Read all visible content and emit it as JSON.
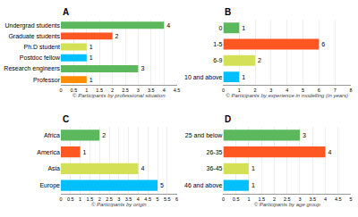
{
  "chart_data": [
    {
      "type": "bar",
      "orientation": "horizontal",
      "title": "A",
      "xlabel": "© Participants by professional situation",
      "categories": [
        "Professor",
        "Research engineers",
        "Postdoc fellow",
        "Ph.D student",
        "Graduate students",
        "Undergrad students"
      ],
      "values": [
        1,
        3,
        1,
        1,
        2,
        4
      ],
      "colors": [
        "#FF8C00",
        "#5CB85C",
        "#00BFFF",
        "#D4E157",
        "#FF5722",
        "#5CB85C"
      ],
      "xlim": [
        0,
        4.5
      ],
      "xticks": [
        0,
        0.5,
        1,
        1.5,
        2,
        2.5,
        3,
        3.5,
        4,
        4.5
      ],
      "grid": true,
      "data_labels": true
    },
    {
      "type": "bar",
      "orientation": "horizontal",
      "title": "B",
      "xlabel": "© Participants by experience in modelling (in years)",
      "categories": [
        "10 and above",
        "6-9",
        "1-5",
        "0"
      ],
      "values": [
        1,
        2,
        6,
        1
      ],
      "colors": [
        "#00BFFF",
        "#D4E157",
        "#FF5722",
        "#5CB85C"
      ],
      "xlim": [
        0,
        8
      ],
      "xticks": [
        0,
        1,
        2,
        3,
        4,
        5,
        6,
        7,
        8
      ],
      "grid": true,
      "data_labels": true
    },
    {
      "type": "bar",
      "orientation": "horizontal",
      "title": "C",
      "xlabel": "© Participants by origin",
      "categories": [
        "Europe",
        "Asia",
        "America",
        "Africa"
      ],
      "values": [
        5,
        4,
        1,
        2
      ],
      "colors": [
        "#00BFFF",
        "#D4E157",
        "#FF5722",
        "#5CB85C"
      ],
      "xlim": [
        0,
        6
      ],
      "xticks": [
        0,
        0.5,
        1,
        1.5,
        2,
        2.5,
        3,
        3.5,
        4,
        4.5,
        5,
        5.5,
        6
      ],
      "grid": true,
      "data_labels": true
    },
    {
      "type": "bar",
      "orientation": "horizontal",
      "title": "D",
      "xlabel": "© Participants by age group",
      "categories": [
        "46 and above",
        "36-45",
        "26-35",
        "25 and below"
      ],
      "values": [
        1,
        1,
        4,
        3
      ],
      "colors": [
        "#00BFFF",
        "#D4E157",
        "#FF5722",
        "#5CB85C"
      ],
      "xlim": [
        0,
        5
      ],
      "xticks": [
        0,
        0.5,
        1,
        1.5,
        2,
        2.5,
        3,
        3.5,
        4,
        4.5,
        5
      ],
      "grid": true,
      "data_labels": true
    }
  ]
}
